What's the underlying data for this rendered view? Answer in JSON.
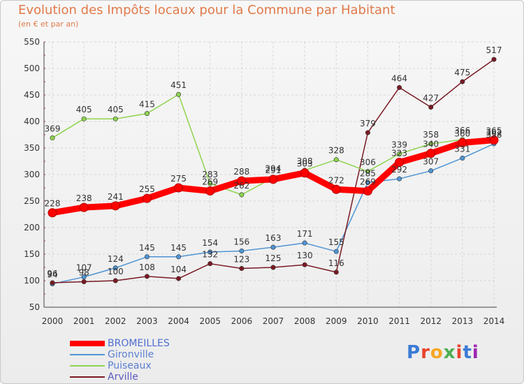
{
  "title": "Evolution des Impôts locaux pour la Commune par Habitant",
  "subtitle": "(en € et par an)",
  "logo": "Proxiti",
  "chart_data": {
    "type": "line",
    "x": [
      "2000",
      "2001",
      "2002",
      "2003",
      "2004",
      "2005",
      "2006",
      "2007",
      "2008",
      "2009",
      "2010",
      "2011",
      "2012",
      "2013",
      "2014"
    ],
    "ylim": [
      50,
      550
    ],
    "yticks": [
      50,
      100,
      150,
      200,
      250,
      300,
      350,
      400,
      450,
      500,
      550
    ],
    "grid": true,
    "legend_position": "bottom-left",
    "series": [
      {
        "name": "BROMEILLES",
        "color": "#ff0000",
        "values": [
          228,
          238,
          241,
          255,
          275,
          269,
          288,
          291,
          303,
          272,
          269,
          323,
          340,
          360,
          365
        ]
      },
      {
        "name": "Gironville",
        "color": "#4f94d4",
        "values": [
          94,
          107,
          124,
          145,
          145,
          154,
          156,
          163,
          171,
          155,
          285,
          292,
          307,
          331,
          358
        ]
      },
      {
        "name": "Puiseaux",
        "color": "#8fd44f",
        "values": [
          369,
          405,
          405,
          415,
          451,
          283,
          262,
          294,
          308,
          328,
          306,
          339,
          358,
          366,
          362
        ]
      },
      {
        "name": "Arville",
        "color": "#7a1a24",
        "values": [
          96,
          98,
          100,
          108,
          104,
          132,
          123,
          125,
          130,
          116,
          379,
          464,
          427,
          475,
          517
        ]
      }
    ]
  }
}
